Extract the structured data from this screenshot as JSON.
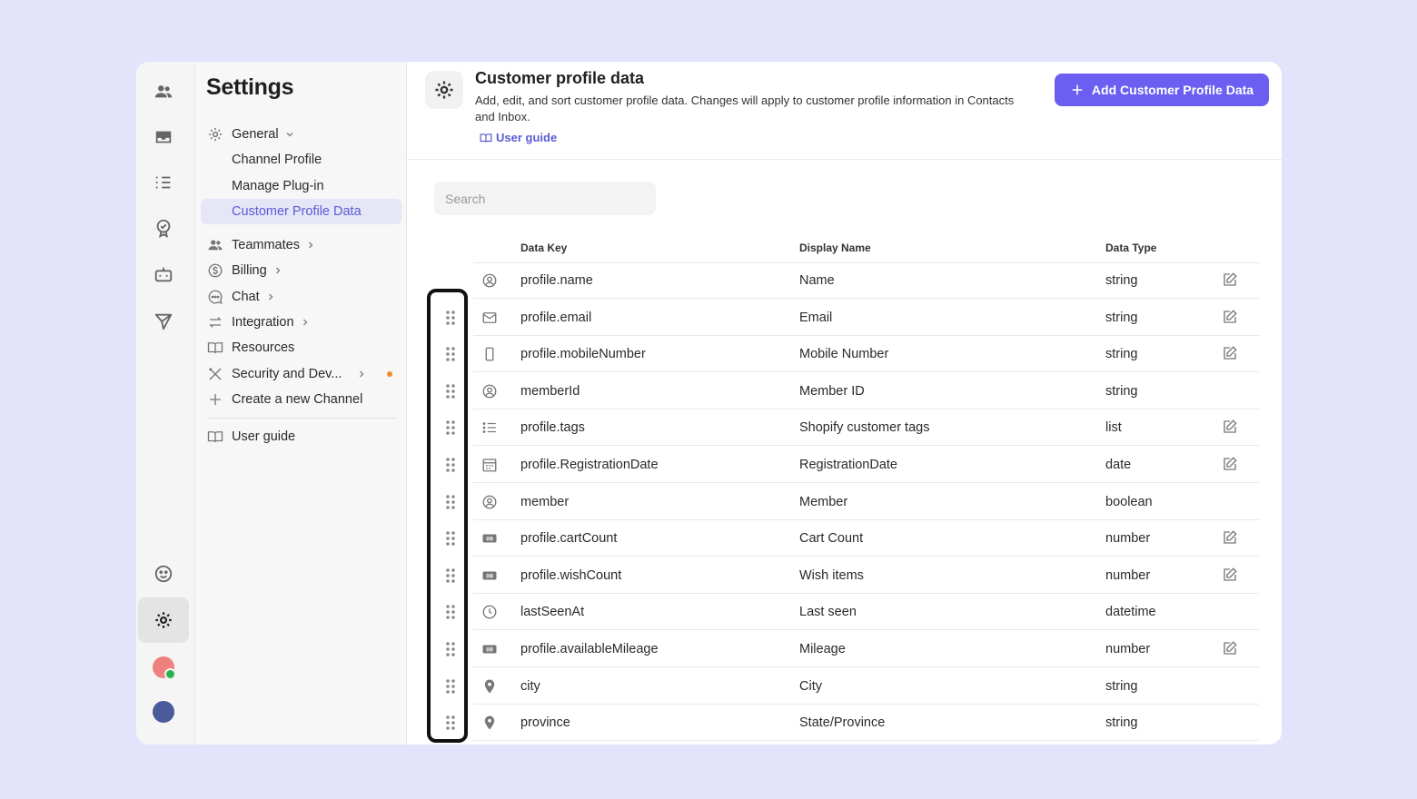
{
  "rail": {
    "items": [
      "people-icon",
      "inbox-icon",
      "list-icon",
      "badge-icon",
      "bot-icon",
      "send-icon",
      "support-icon",
      "gear-icon"
    ]
  },
  "sidebar": {
    "title": "Settings",
    "items": [
      {
        "label": "General",
        "icon": "gear-icon"
      },
      {
        "label": "Channel Profile"
      },
      {
        "label": "Manage Plug-in"
      },
      {
        "label": "Customer Profile Data"
      },
      {
        "label": "Teammates",
        "icon": "people-icon"
      },
      {
        "label": "Billing",
        "icon": "dollar-icon"
      },
      {
        "label": "Chat",
        "icon": "chat-icon"
      },
      {
        "label": "Integration",
        "icon": "swap-icon"
      },
      {
        "label": "Resources",
        "icon": "book-icon"
      },
      {
        "label": "Security and Dev...",
        "icon": "tools-icon"
      },
      {
        "label": "Create a new Channel",
        "icon": "plus-icon"
      },
      {
        "label": "User guide",
        "icon": "book-icon"
      }
    ]
  },
  "header": {
    "title": "Customer profile data",
    "description": "Add, edit, and sort customer profile data. Changes will apply to customer profile information in Contacts and Inbox.",
    "guide_label": "User guide",
    "add_button": "Add Customer Profile Data"
  },
  "search": {
    "placeholder": "Search"
  },
  "table": {
    "columns": [
      "Data Key",
      "Display Name",
      "Data Type"
    ],
    "rows": [
      {
        "key": "profile.name",
        "display": "Name",
        "type": "string",
        "icon": "user-circle-icon",
        "draggable": false,
        "editable": true
      },
      {
        "key": "profile.email",
        "display": "Email",
        "type": "string",
        "icon": "mail-icon",
        "draggable": true,
        "editable": true
      },
      {
        "key": "profile.mobileNumber",
        "display": "Mobile Number",
        "type": "string",
        "icon": "phone-icon",
        "draggable": true,
        "editable": true
      },
      {
        "key": "memberId",
        "display": "Member ID",
        "type": "string",
        "icon": "user-circle-icon",
        "draggable": true,
        "editable": false
      },
      {
        "key": "profile.tags",
        "display": "Shopify customer tags",
        "type": "list",
        "icon": "list-icon",
        "draggable": true,
        "editable": true
      },
      {
        "key": "profile.RegistrationDate",
        "display": "RegistrationDate",
        "type": "date",
        "icon": "calendar-icon",
        "draggable": true,
        "editable": true
      },
      {
        "key": "member",
        "display": "Member",
        "type": "boolean",
        "icon": "user-circle-icon",
        "draggable": true,
        "editable": false
      },
      {
        "key": "profile.cartCount",
        "display": "Cart Count",
        "type": "number",
        "icon": "number-icon",
        "draggable": true,
        "editable": true
      },
      {
        "key": "profile.wishCount",
        "display": "Wish items",
        "type": "number",
        "icon": "number-icon",
        "draggable": true,
        "editable": true
      },
      {
        "key": "lastSeenAt",
        "display": "Last seen",
        "type": "datetime",
        "icon": "clock-icon",
        "draggable": true,
        "editable": false
      },
      {
        "key": "profile.availableMileage",
        "display": "Mileage",
        "type": "number",
        "icon": "number-icon",
        "draggable": true,
        "editable": true
      },
      {
        "key": "city",
        "display": "City",
        "type": "string",
        "icon": "pin-icon",
        "draggable": true,
        "editable": false
      },
      {
        "key": "province",
        "display": "State/Province",
        "type": "string",
        "icon": "pin-icon",
        "draggable": true,
        "editable": false
      }
    ]
  },
  "colors": {
    "accent": "#6b5ef0",
    "active_bg": "#e6e6f7",
    "notify_dot": "#f08a2c",
    "background": "#e3e3fb"
  }
}
